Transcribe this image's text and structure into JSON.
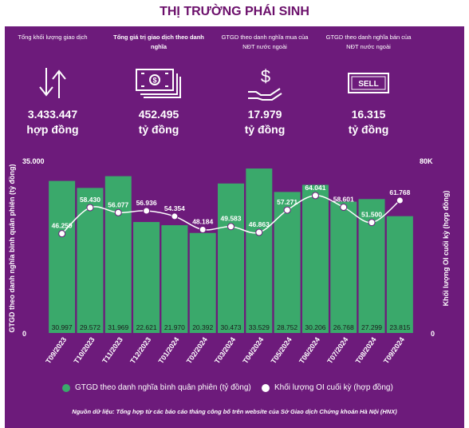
{
  "title": "THỊ TRƯỜNG PHÁI SINH",
  "stats": [
    {
      "label": "Tổng khối lượng giao dịch",
      "value": "3.433.447",
      "unit": "hợp đồng",
      "icon": "up-down-arrows-icon"
    },
    {
      "label": "Tổng giá trị giao dịch theo danh nghĩa",
      "value": "452.495",
      "unit": "tỷ đồng",
      "icon": "banknotes-icon"
    },
    {
      "label": "GTGD theo danh nghĩa mua của NĐT nước ngoài",
      "value": "17.979",
      "unit": "tỷ đồng",
      "icon": "dollar-hand-icon"
    },
    {
      "label": "GTGD theo danh nghĩa bán của NĐT nước ngoài",
      "value": "16.315",
      "unit": "tỷ đồng",
      "icon": "sell-tag-icon"
    }
  ],
  "colors": {
    "background": "#6d1b7b",
    "bar": "#3aa96b",
    "line": "#ffffff",
    "title": "#6b0f6b"
  },
  "chart_data": {
    "type": "bar",
    "categories": [
      "T09/2023",
      "T10/2023",
      "T11/2023",
      "T12/2023",
      "T01/2024",
      "T02/2024",
      "T03/2024",
      "T04/2024",
      "T05/2024",
      "T06/2024",
      "T07/2024",
      "T08/2024",
      "T09/2024"
    ],
    "series": [
      {
        "name": "GTGD theo danh nghĩa bình quân phiên (tỷ đồng)",
        "type": "bar",
        "axis": "left",
        "values": [
          30997,
          29572,
          31969,
          22621,
          21970,
          20392,
          30473,
          33529,
          28752,
          30206,
          26768,
          27299,
          23815
        ],
        "labels": [
          "30.997",
          "29.572",
          "31.969",
          "22.621",
          "21.970",
          "20.392",
          "30.473",
          "33.529",
          "28.752",
          "30.206",
          "26.768",
          "27.299",
          "23.815"
        ]
      },
      {
        "name": "Khối lượng OI cuối kỳ (hợp đồng)",
        "type": "line",
        "axis": "right",
        "values": [
          46259,
          58430,
          56077,
          56936,
          54354,
          48184,
          49583,
          46863,
          57271,
          64041,
          58601,
          51500,
          61768
        ],
        "labels": [
          "46.259",
          "58.430",
          "56.077",
          "56.936",
          "54.354",
          "48.184",
          "49.583",
          "46.863",
          "57.271",
          "64.041",
          "58.601",
          "51.500",
          "61.768"
        ]
      }
    ],
    "ylabel": "GTGD theo danh nghĩa bình quân phiên (tỷ đồng)",
    "y2label": "Khối lượng OI cuối kỳ (hợp đồng)",
    "ylim": [
      0,
      35000
    ],
    "y2lim": [
      0,
      80000
    ],
    "ytick_labels": [
      "0",
      "35.000"
    ],
    "y2tick_labels": [
      "0",
      "80K"
    ],
    "grid": false,
    "legend": "bottom"
  },
  "source": "Nguồn dữ liệu: Tổng hợp từ các báo cáo tháng công bố trên website của Sở Giao dịch Chứng khoán Hà Nội (HNX)"
}
